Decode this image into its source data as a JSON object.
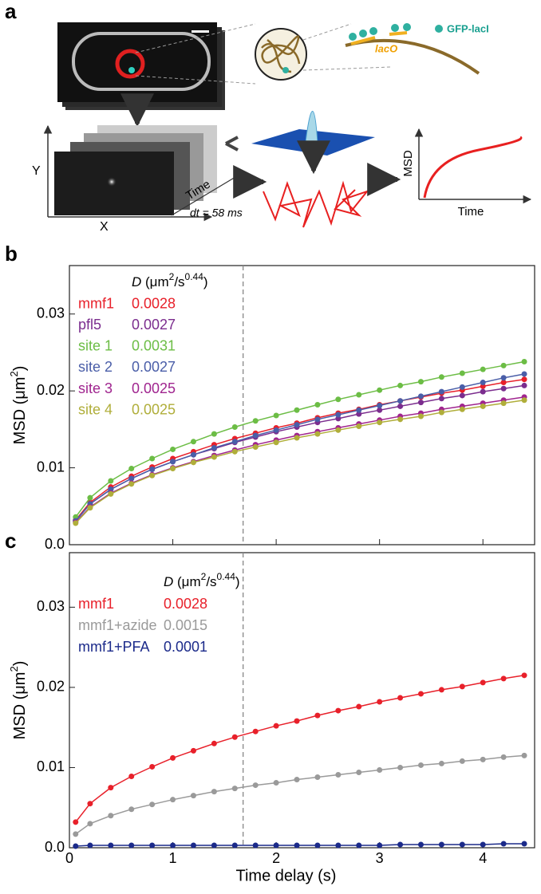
{
  "panel_a": {
    "label": "a",
    "gfp_label": "GFP-lacI",
    "laco_label": "lacO",
    "y_axis": "Y",
    "x_axis": "X",
    "time_axis": "Time",
    "dt_label": "dt = 58 ms",
    "msd_axis": "MSD",
    "msd_time_axis": "Time"
  },
  "chart_data": [
    {
      "type": "scatter",
      "panel_label": "b",
      "ylabel": [
        "MSD (μm",
        "2",
        ")"
      ],
      "legend_title": [
        "D",
        " (μm",
        "2",
        "/s",
        "0.44",
        ")"
      ],
      "xlim": [
        0,
        4.5
      ],
      "ylim": [
        0,
        0.0363
      ],
      "xticks": [
        0,
        1,
        2,
        3,
        4
      ],
      "yticks": [
        {
          "value": 0,
          "label": "0.0"
        },
        0.01,
        0.02,
        0.03
      ],
      "vline": 1.68,
      "x": [
        0.06,
        0.2,
        0.4,
        0.6,
        0.8,
        1.0,
        1.2,
        1.4,
        1.6,
        1.8,
        2.0,
        2.2,
        2.4,
        2.6,
        2.8,
        3.0,
        3.2,
        3.4,
        3.6,
        3.8,
        4.0,
        4.2,
        4.4
      ],
      "series": [
        {
          "name": "mmf1",
          "D": 0.0028,
          "color": "#e8202a",
          "values": [
            0.0032,
            0.0055,
            0.0075,
            0.0089,
            0.0101,
            0.0112,
            0.0121,
            0.013,
            0.0138,
            0.0145,
            0.0152,
            0.0158,
            0.0165,
            0.0171,
            0.0176,
            0.0182,
            0.0187,
            0.0192,
            0.0197,
            0.0201,
            0.0206,
            0.0211,
            0.0215
          ]
        },
        {
          "name": "pfl5",
          "D": 0.0027,
          "color": "#7b2d8e",
          "values": [
            0.0031,
            0.0053,
            0.0072,
            0.0086,
            0.0098,
            0.0108,
            0.0117,
            0.0125,
            0.0133,
            0.014,
            0.0147,
            0.0153,
            0.0159,
            0.0164,
            0.017,
            0.0175,
            0.018,
            0.0185,
            0.019,
            0.0194,
            0.0199,
            0.0203,
            0.0207
          ]
        },
        {
          "name": "site 1",
          "D": 0.0031,
          "color": "#6cbd45",
          "values": [
            0.0036,
            0.0061,
            0.0083,
            0.0099,
            0.0112,
            0.0124,
            0.0134,
            0.0144,
            0.0153,
            0.0161,
            0.0168,
            0.0175,
            0.0182,
            0.0189,
            0.0195,
            0.0201,
            0.0207,
            0.0212,
            0.0218,
            0.0223,
            0.0228,
            0.0233,
            0.0238
          ]
        },
        {
          "name": "site 2",
          "D": 0.0027,
          "color": "#4a5ea8",
          "values": [
            0.0031,
            0.0053,
            0.0072,
            0.0086,
            0.0098,
            0.0108,
            0.0117,
            0.0126,
            0.0134,
            0.0142,
            0.0149,
            0.0156,
            0.0163,
            0.0169,
            0.0175,
            0.0181,
            0.0187,
            0.0193,
            0.0199,
            0.0205,
            0.0211,
            0.0217,
            0.0222
          ]
        },
        {
          "name": "site 3",
          "D": 0.0025,
          "color": "#a0258f",
          "values": [
            0.0029,
            0.0049,
            0.0067,
            0.008,
            0.0091,
            0.01,
            0.0108,
            0.0116,
            0.0123,
            0.013,
            0.0136,
            0.0142,
            0.0147,
            0.0152,
            0.0157,
            0.0162,
            0.0167,
            0.0171,
            0.0176,
            0.018,
            0.0184,
            0.0188,
            0.0192
          ]
        },
        {
          "name": "site 4",
          "D": 0.0025,
          "color": "#b0ae3a",
          "values": [
            0.0028,
            0.0048,
            0.0066,
            0.0079,
            0.009,
            0.0099,
            0.0107,
            0.0114,
            0.0121,
            0.0127,
            0.0133,
            0.0139,
            0.0144,
            0.0149,
            0.0154,
            0.0159,
            0.0163,
            0.0167,
            0.0172,
            0.0176,
            0.018,
            0.0184,
            0.0188
          ]
        }
      ]
    },
    {
      "type": "scatter",
      "panel_label": "c",
      "ylabel": [
        "MSD (μm",
        "2",
        ")"
      ],
      "xlabel": "Time delay (s)",
      "legend_title": [
        "D",
        " (μm",
        "2",
        "/s",
        "0.44",
        ")"
      ],
      "xlim": [
        0,
        4.5
      ],
      "ylim": [
        0,
        0.0368
      ],
      "xticks": [
        0,
        1,
        2,
        3,
        4
      ],
      "yticks": [
        {
          "value": 0,
          "label": "0.0"
        },
        0.01,
        0.02,
        0.03
      ],
      "vline": 1.68,
      "x": [
        0.06,
        0.2,
        0.4,
        0.6,
        0.8,
        1.0,
        1.2,
        1.4,
        1.6,
        1.8,
        2.0,
        2.2,
        2.4,
        2.6,
        2.8,
        3.0,
        3.2,
        3.4,
        3.6,
        3.8,
        4.0,
        4.2,
        4.4
      ],
      "series": [
        {
          "name": "mmf1",
          "D": 0.0028,
          "color": "#e8202a",
          "values": [
            0.0032,
            0.0055,
            0.0075,
            0.0089,
            0.0101,
            0.0112,
            0.0121,
            0.013,
            0.0138,
            0.0145,
            0.0152,
            0.0158,
            0.0165,
            0.0171,
            0.0176,
            0.0182,
            0.0187,
            0.0192,
            0.0197,
            0.0201,
            0.0206,
            0.0211,
            0.0215
          ]
        },
        {
          "name": "mmf1+azide",
          "D": 0.0015,
          "color": "#9a9a9a",
          "values": [
            0.0017,
            0.003,
            0.004,
            0.0048,
            0.0054,
            0.006,
            0.0065,
            0.007,
            0.0074,
            0.0078,
            0.0081,
            0.0085,
            0.0088,
            0.0091,
            0.0094,
            0.0097,
            0.01,
            0.0103,
            0.0105,
            0.0108,
            0.011,
            0.0113,
            0.0115
          ]
        },
        {
          "name": "mmf1+PFA",
          "D": 0.0001,
          "color": "#1b2a8a",
          "values": [
            0.0002,
            0.0003,
            0.0003,
            0.0003,
            0.0003,
            0.0003,
            0.0003,
            0.0003,
            0.0003,
            0.0003,
            0.0003,
            0.0003,
            0.0003,
            0.0003,
            0.0003,
            0.0003,
            0.0004,
            0.0004,
            0.0004,
            0.0004,
            0.0004,
            0.0005,
            0.0005
          ]
        }
      ]
    }
  ]
}
